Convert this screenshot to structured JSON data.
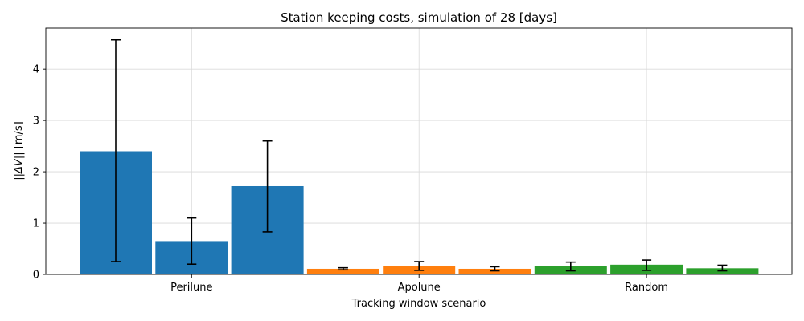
{
  "chart_data": {
    "type": "bar",
    "title": "Station keeping costs, simulation of 28 [days]",
    "xlabel": "Tracking window scenario",
    "ylabel_prefix": "||",
    "ylabel_symbol": "ΔV",
    "ylabel_suffix": "|| [m/s]",
    "categories": [
      "Perilune",
      "Apolune",
      "Random"
    ],
    "ylim": [
      0,
      4.8
    ],
    "yticks": [
      0,
      1,
      2,
      3,
      4
    ],
    "grid": true,
    "groups": [
      {
        "category": "Perilune",
        "color": "#1f77b4",
        "bars": [
          {
            "value": 2.4,
            "err_low": 0.25,
            "err_high": 4.57
          },
          {
            "value": 0.65,
            "err_low": 0.2,
            "err_high": 1.1
          },
          {
            "value": 1.72,
            "err_low": 0.83,
            "err_high": 2.6
          }
        ]
      },
      {
        "category": "Apolune",
        "color": "#ff7f0e",
        "bars": [
          {
            "value": 0.11,
            "err_low": 0.09,
            "err_high": 0.13
          },
          {
            "value": 0.17,
            "err_low": 0.08,
            "err_high": 0.25
          },
          {
            "value": 0.11,
            "err_low": 0.07,
            "err_high": 0.15
          }
        ]
      },
      {
        "category": "Random",
        "color": "#2ca02c",
        "bars": [
          {
            "value": 0.16,
            "err_low": 0.07,
            "err_high": 0.24
          },
          {
            "value": 0.19,
            "err_low": 0.08,
            "err_high": 0.28
          },
          {
            "value": 0.12,
            "err_low": 0.07,
            "err_high": 0.18
          }
        ]
      }
    ]
  }
}
